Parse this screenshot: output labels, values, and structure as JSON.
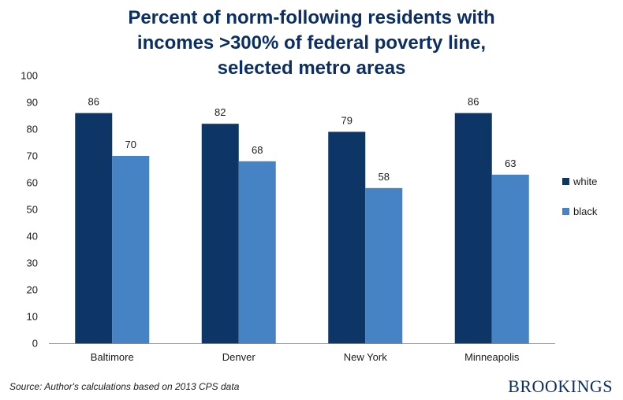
{
  "chart_data": {
    "type": "bar",
    "title_lines": [
      "Percent of norm-following residents with",
      "incomes >300% of federal poverty line,",
      "selected metro areas"
    ],
    "categories": [
      "Baltimore",
      "Denver",
      "New York",
      "Minneapolis"
    ],
    "series": [
      {
        "name": "white",
        "color": "#0d3566",
        "values": [
          86,
          82,
          79,
          86
        ]
      },
      {
        "name": "black",
        "color": "#4683c4",
        "values": [
          70,
          68,
          58,
          63
        ]
      }
    ],
    "value_labels": [
      [
        "86",
        "82",
        "79",
        "86"
      ],
      [
        "70",
        "68",
        "58",
        "63"
      ]
    ],
    "ylim": [
      0,
      100
    ],
    "yticks": [
      0,
      10,
      20,
      30,
      40,
      50,
      60,
      70,
      80,
      90,
      100
    ],
    "xlabel": "",
    "ylabel": "",
    "grid": false,
    "legend_position": "right"
  },
  "footer": {
    "source": "Source: Author's calculations based on 2013 CPS data",
    "brand": "BROOKINGS"
  }
}
